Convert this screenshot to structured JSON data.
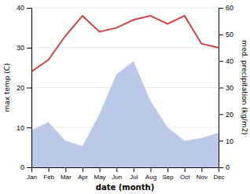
{
  "chart_data": {
    "type": "line",
    "categories": [
      "Jan",
      "Feb",
      "Mar",
      "Apr",
      "May",
      "Jun",
      "Jul",
      "Aug",
      "Sep",
      "Oct",
      "Nov",
      "Dec"
    ],
    "xlabel": "date (month)",
    "ylabel": "max temp (C)",
    "y2label": "med. precipitation (kg/m2)",
    "series": [
      {
        "type": "area",
        "axis": "y2",
        "color": "#bbc8e8",
        "values": [
          14,
          17,
          10,
          8,
          20,
          35,
          40,
          25,
          15,
          10,
          11,
          13
        ]
      },
      {
        "type": "line",
        "color": "#cc4444",
        "values": [
          24,
          27,
          33,
          38,
          34,
          35,
          37,
          38,
          36,
          38,
          31,
          30
        ]
      }
    ],
    "ylim": [
      0,
      40
    ],
    "yticks": [
      0,
      10,
      20,
      30,
      40
    ],
    "y2lim": [
      0,
      60
    ],
    "y2ticks": [
      0,
      10,
      20,
      30,
      40,
      50,
      60
    ],
    "grid": true
  }
}
